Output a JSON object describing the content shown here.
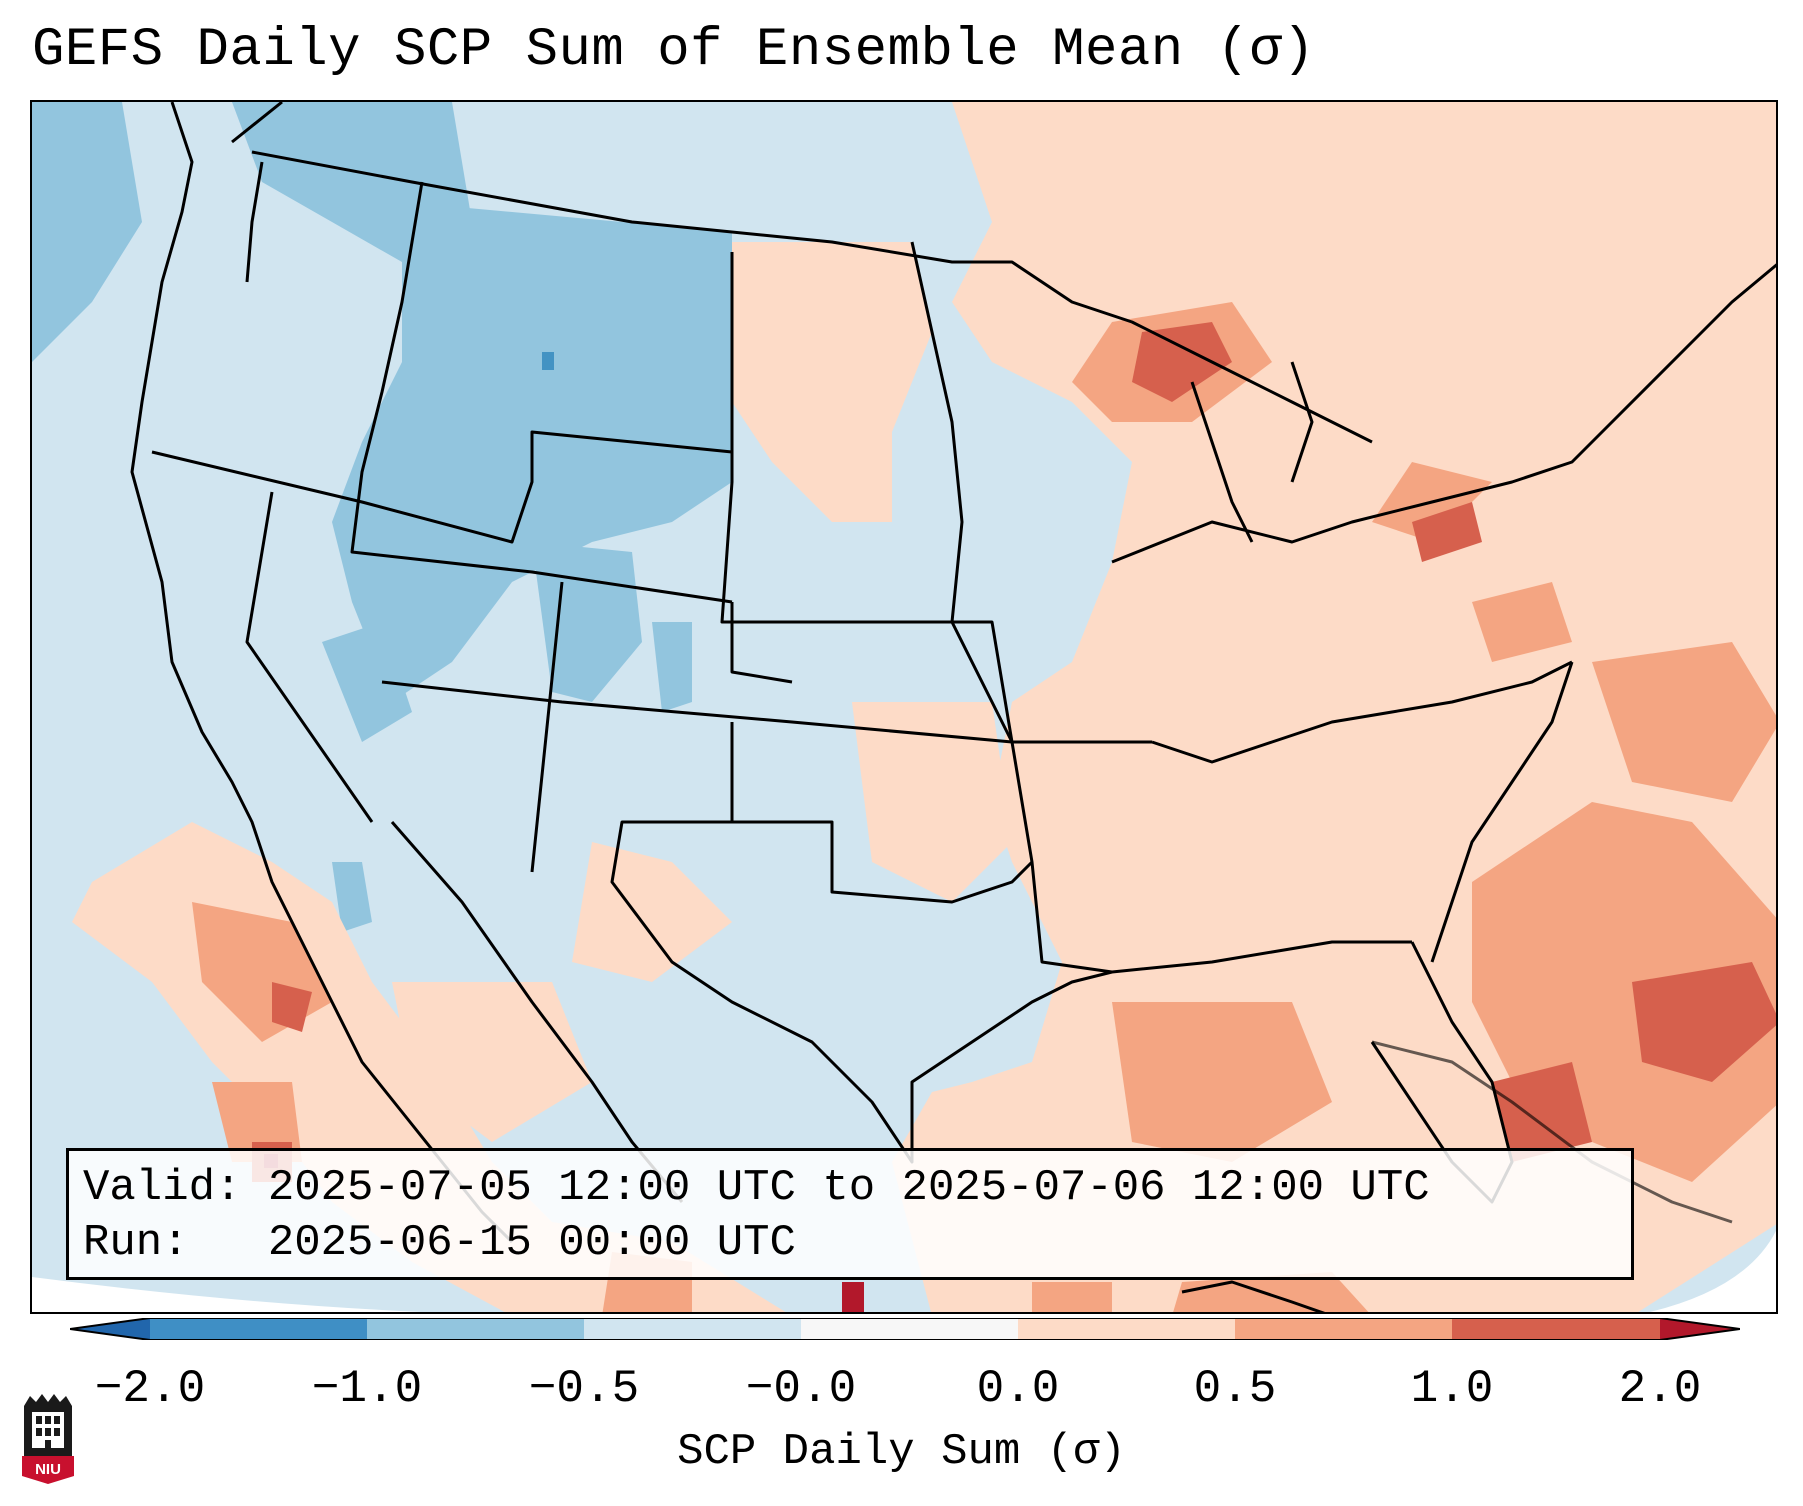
{
  "title": "GEFS Daily SCP Sum of Ensemble Mean (σ)",
  "info": {
    "valid_label": "Valid:",
    "valid_value": "2025-07-05 12:00 UTC to 2025-07-06 12:00 UTC",
    "run_label": "Run:",
    "run_value": "2025-06-15 00:00 UTC"
  },
  "colorbar": {
    "label": "SCP Daily Sum (σ)",
    "ticks": [
      "−2.0",
      "−1.0",
      "−0.5",
      "−0.0",
      "0.0",
      "0.5",
      "1.0",
      "2.0"
    ],
    "colors": [
      "#3f8fc5",
      "#92c5de",
      "#d1e5f0",
      "#f7f7f7",
      "#fddbc7",
      "#f4a582",
      "#d6604d"
    ],
    "extend_low_color": "#2166ac",
    "extend_high_color": "#b2182b"
  },
  "logo": {
    "text": "NIU",
    "color": "#c8102e"
  }
}
